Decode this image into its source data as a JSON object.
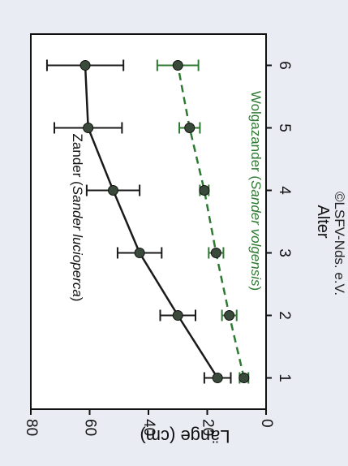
{
  "chart_data": {
    "type": "line",
    "orientation": "rotated-90-clockwise",
    "x": [
      1,
      2,
      3,
      4,
      5,
      6
    ],
    "xlabel": "Alter",
    "ylabel": "Länge (cm)",
    "xlim": [
      0.5,
      6.5
    ],
    "ylim": [
      0,
      80
    ],
    "xticks": [
      "1",
      "2",
      "3",
      "4",
      "5",
      "6"
    ],
    "yticks": [
      "0",
      "20",
      "40",
      "60",
      "80"
    ],
    "series": [
      {
        "name": "Zander (Sander lucioperca)",
        "name_prefix": "Zander (",
        "name_italic": "Sander lucioperca",
        "name_suffix": ")",
        "color": "#1a1a1a",
        "line_style": "solid",
        "values": [
          16.5,
          30,
          43,
          52,
          60.5,
          61.5
        ],
        "errors": [
          4.5,
          6,
          7.5,
          9,
          11.5,
          13
        ]
      },
      {
        "name": "Wolgazander (Sander volgensis)",
        "name_prefix": "Wolgazander (",
        "name_italic": "Sander volgensis",
        "name_suffix": ")",
        "color": "#2e7a32",
        "line_style": "dashed",
        "values": [
          7.5,
          12.5,
          17,
          21,
          26,
          30
        ],
        "errors": [
          1.5,
          2.5,
          2.5,
          1.5,
          3.5,
          7
        ]
      }
    ],
    "grid": false,
    "legend": "inline labels"
  },
  "copyright": "©LSFV-Nds. e.V.",
  "colors": {
    "background": "#e9ecf3",
    "plot_background": "#ffffff",
    "marker_fill": "#3a4a3a"
  }
}
